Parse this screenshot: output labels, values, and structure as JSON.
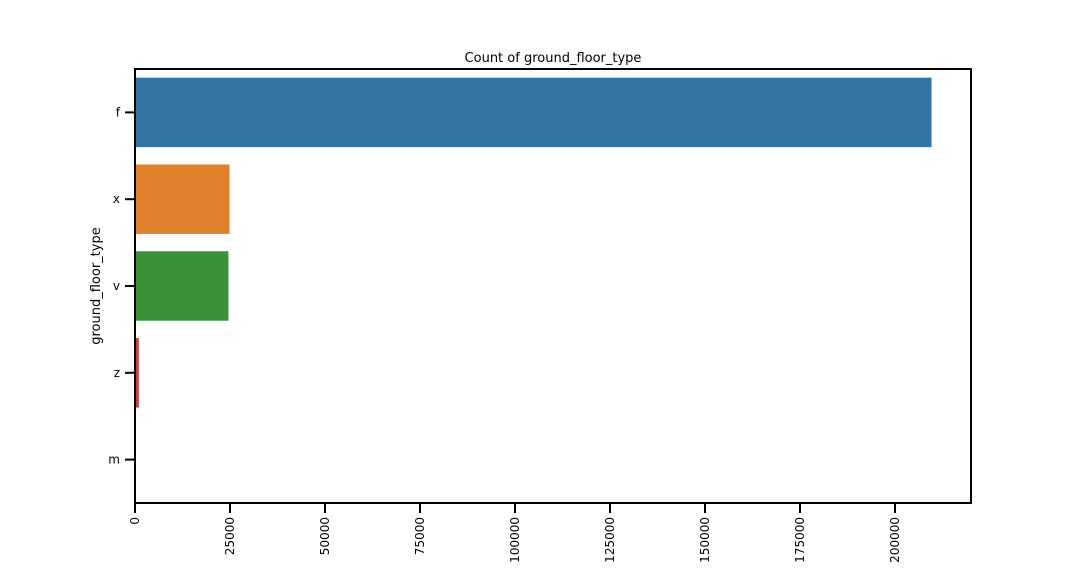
{
  "chart_data": {
    "type": "bar",
    "orientation": "horizontal",
    "title": "Count of ground_floor_type",
    "ylabel": "ground_floor_type",
    "xlabel": "",
    "categories": [
      "f",
      "x",
      "v",
      "z",
      "m"
    ],
    "values": [
      209619,
      24877,
      24593,
      1004,
      57
    ],
    "colors": [
      "#3274a1",
      "#e1812c",
      "#3a923a",
      "#c03d3e",
      "#9372b2"
    ],
    "xlim": [
      0,
      220000
    ],
    "xticks": [
      0,
      25000,
      50000,
      75000,
      100000,
      125000,
      150000,
      175000,
      200000
    ],
    "grid": false,
    "legend": "none"
  }
}
